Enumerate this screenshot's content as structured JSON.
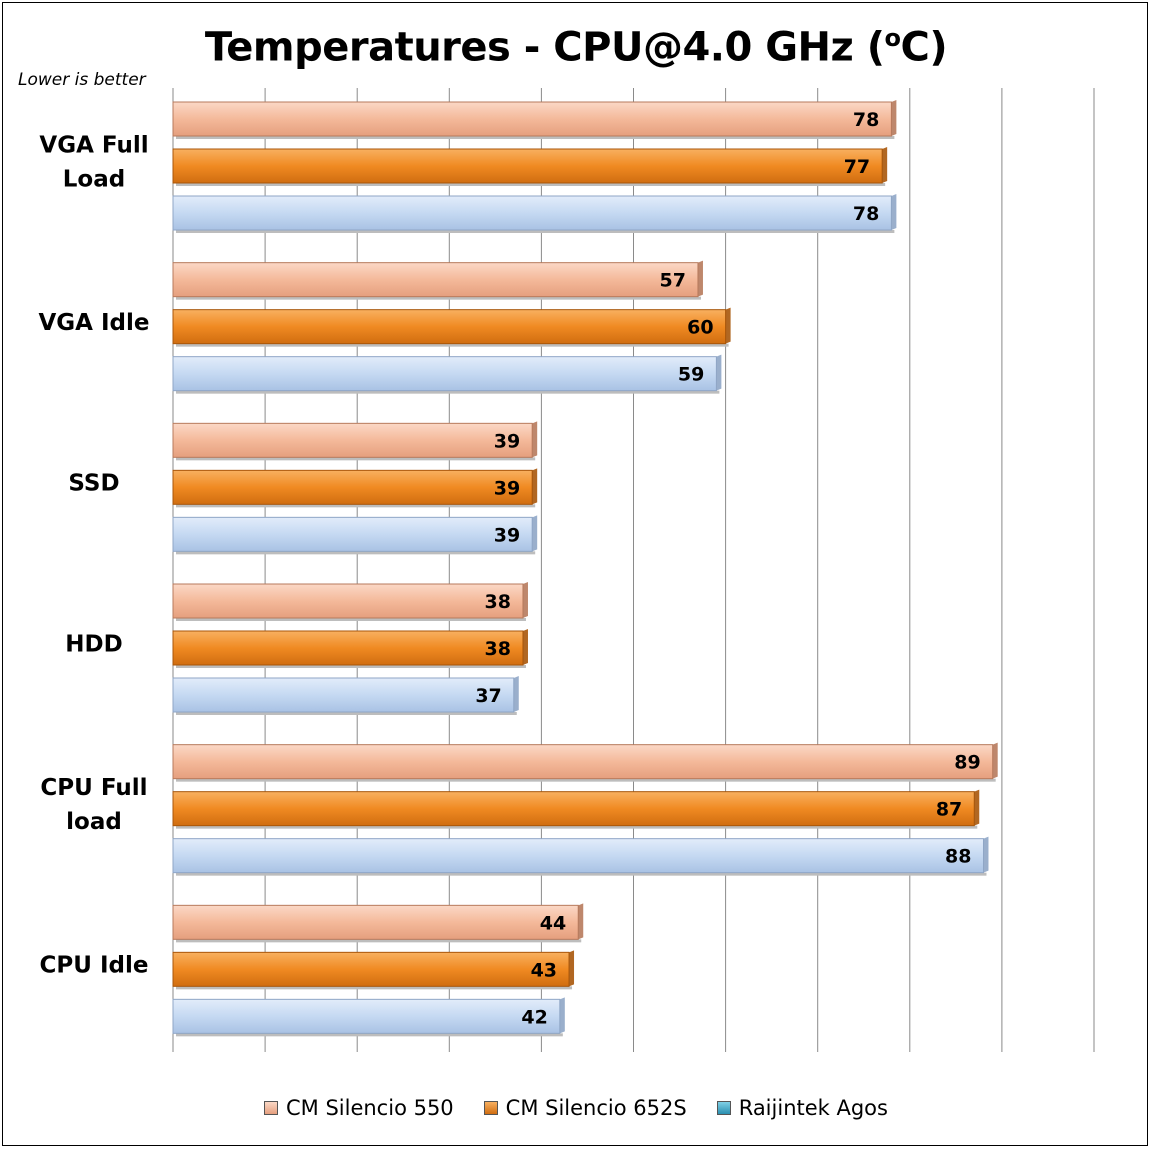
{
  "chart_data": {
    "type": "bar",
    "orientation": "horizontal",
    "title": "Temperatures - CPU@4.0 GHz (",
    "title_sup": "o",
    "title_tail": "C)",
    "subtitle": "Lower is better",
    "categories": [
      "VGA Full Load",
      "VGA Idle",
      "SSD",
      "HDD",
      "CPU Full load",
      "CPU Idle"
    ],
    "series": [
      {
        "name": "CM Silencio 550",
        "values": [
          78,
          57,
          39,
          38,
          89,
          44
        ]
      },
      {
        "name": "CM Silencio 652S",
        "values": [
          77,
          60,
          39,
          38,
          87,
          43
        ]
      },
      {
        "name": "Raijintek Agos",
        "values": [
          78,
          59,
          39,
          37,
          88,
          42
        ]
      }
    ],
    "xlim": [
      0,
      100
    ],
    "grid": "vertical",
    "legend_position": "bottom",
    "colors": {
      "CM Silencio 550": "#f4b99a",
      "CM Silencio 652S": "#f08a22",
      "Raijintek Agos": "#c5d9f2",
      "legend_Raijintek Agos": "#3aa6c4"
    },
    "data_labels": true
  }
}
